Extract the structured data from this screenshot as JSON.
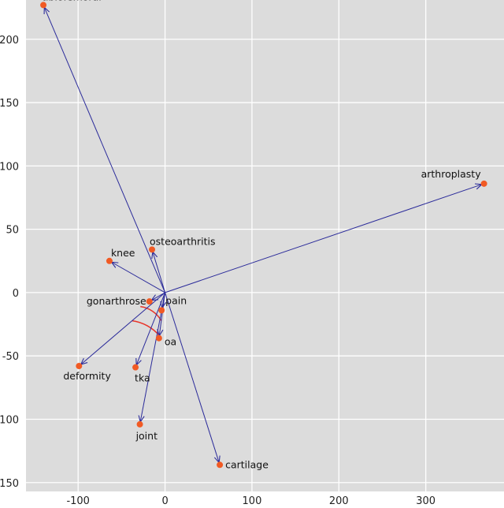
{
  "chart_data": {
    "type": "scatter",
    "title": "",
    "xlabel": "",
    "ylabel": "",
    "xlim": [
      -160,
      390
    ],
    "ylim": [
      -157,
      231
    ],
    "x_ticks": [
      -100,
      0,
      100,
      200,
      300
    ],
    "y_ticks": [
      200,
      150,
      100,
      50,
      0,
      -50,
      -100,
      -150
    ],
    "x_tick_labels": [
      "-100",
      "0",
      "100",
      "200",
      "300"
    ],
    "y_tick_labels": [
      "200",
      "150",
      "100",
      "50",
      "0",
      "-50",
      "-100",
      "-150"
    ],
    "grid": true,
    "origin": [
      0,
      0
    ],
    "points": [
      {
        "label": "tibiofemoral",
        "x": -140,
        "y": 227
      },
      {
        "label": "arthroplasty",
        "x": 367,
        "y": 86
      },
      {
        "label": "osteoarthritis",
        "x": -15,
        "y": 34
      },
      {
        "label": "knee",
        "x": -64,
        "y": 25
      },
      {
        "label": "gonarthrose",
        "x": -18,
        "y": -7
      },
      {
        "label": "pain",
        "x": -4,
        "y": -14
      },
      {
        "label": "oa",
        "x": -7,
        "y": -36
      },
      {
        "label": "deformity",
        "x": -99,
        "y": -58
      },
      {
        "label": "tka",
        "x": -34,
        "y": -59
      },
      {
        "label": "joint",
        "x": -29,
        "y": -104
      },
      {
        "label": "cartilage",
        "x": 63,
        "y": -136
      }
    ],
    "arc_angles": [
      {
        "from": "gonarthrose",
        "to": "oa",
        "radius": 36
      },
      {
        "from": "deformity",
        "to": "oa",
        "radius": 55
      }
    ],
    "colors": {
      "background": "#dcdcdc",
      "grid": "#ffffff",
      "arrow": "#2b2b9a",
      "point": "#f15a24",
      "arc": "#e8352a"
    }
  }
}
